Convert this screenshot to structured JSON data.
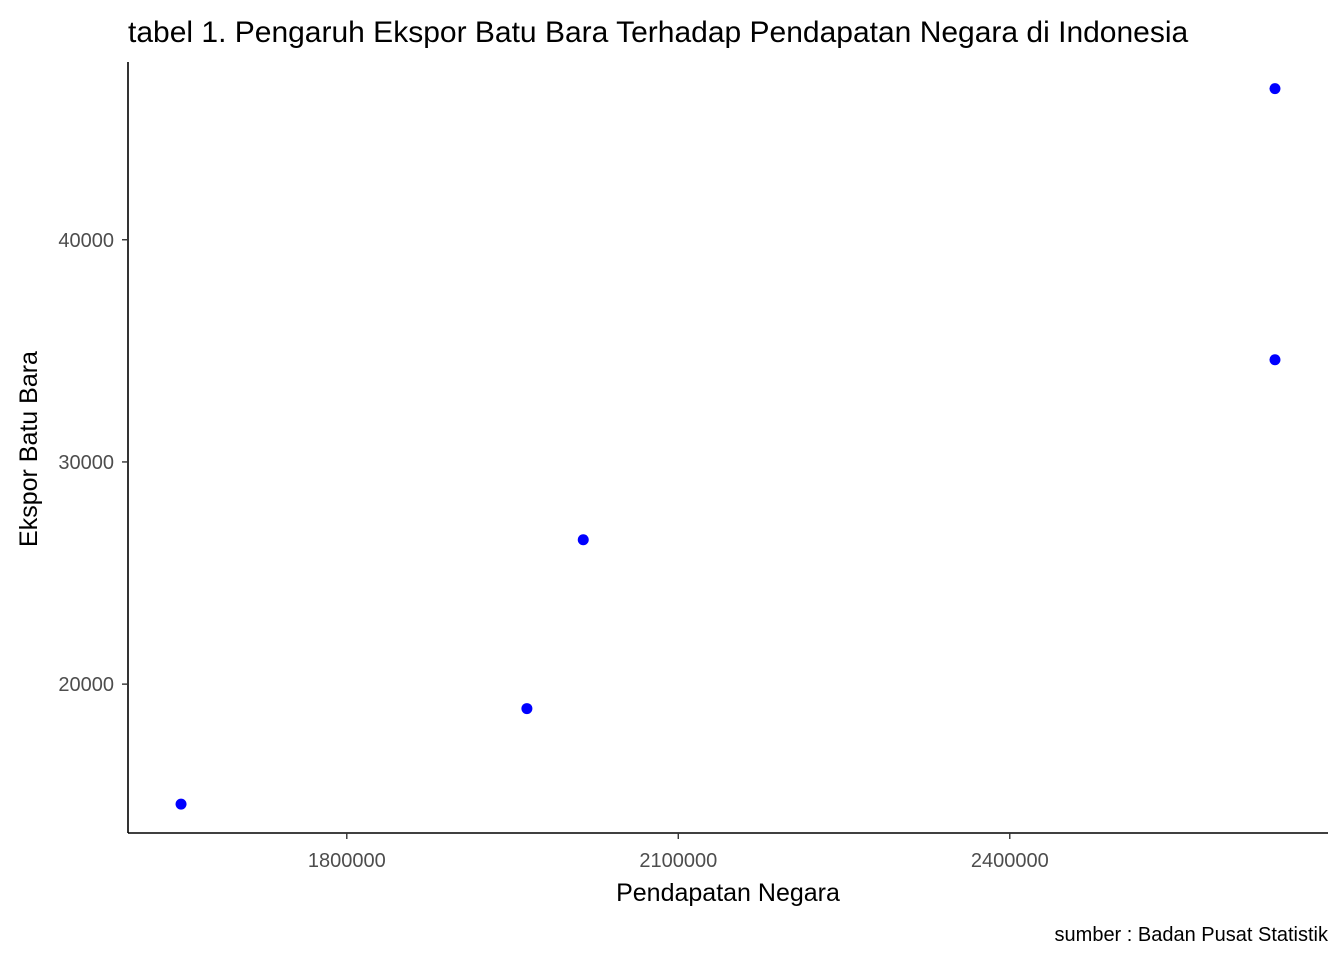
{
  "chart_data": {
    "type": "scatter",
    "title": "tabel 1. Pengaruh Ekspor Batu Bara Terhadap Pendapatan Negara di Indonesia",
    "xlabel": "Pendapatan Negara",
    "ylabel": "Ekspor Batu Bara",
    "caption": "sumber : Badan Pusat Statistik",
    "xlim": [
      1602000,
      2688000
    ],
    "ylim": [
      13300,
      48000
    ],
    "x_ticks": [
      1800000,
      2100000,
      2400000
    ],
    "y_ticks": [
      20000,
      30000,
      40000
    ],
    "grid": false,
    "legend": "none",
    "point_color": "#0000ff",
    "points": [
      {
        "x": 1650000,
        "y": 14600
      },
      {
        "x": 1963000,
        "y": 18900
      },
      {
        "x": 2014000,
        "y": 26500
      },
      {
        "x": 2640000,
        "y": 34600
      },
      {
        "x": 2640000,
        "y": 46800
      }
    ]
  }
}
